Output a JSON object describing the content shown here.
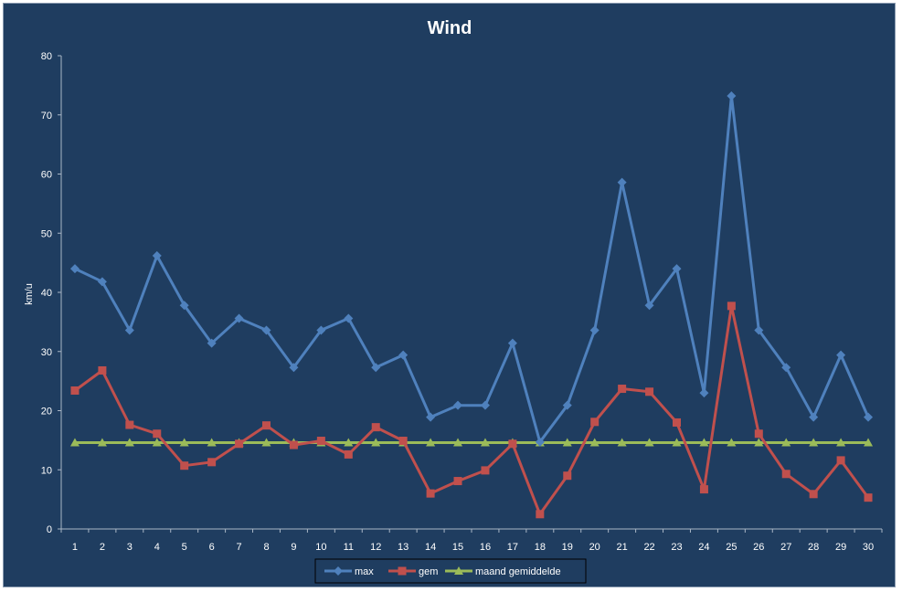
{
  "chart_data": {
    "type": "line",
    "title": "Wind",
    "xlabel": "",
    "ylabel": "km/u",
    "ylim": [
      0,
      80
    ],
    "yticks": [
      "0",
      "10",
      "20",
      "30",
      "40",
      "50",
      "60",
      "70",
      "80"
    ],
    "categories": [
      "1",
      "2",
      "3",
      "4",
      "5",
      "6",
      "7",
      "8",
      "9",
      "10",
      "11",
      "12",
      "13",
      "14",
      "15",
      "16",
      "17",
      "18",
      "19",
      "20",
      "21",
      "22",
      "23",
      "24",
      "25",
      "26",
      "27",
      "28",
      "29",
      "30"
    ],
    "legend_position": "bottom",
    "grid": false,
    "series": [
      {
        "name": "max",
        "color": "#4f81bd",
        "marker": "diamond",
        "values": [
          44,
          41.8,
          33.6,
          46.2,
          37.8,
          31.4,
          35.6,
          33.6,
          27.3,
          33.6,
          35.6,
          27.3,
          29.4,
          18.9,
          20.9,
          20.9,
          31.4,
          14.7,
          20.9,
          33.6,
          58.6,
          37.8,
          44,
          23,
          73.2,
          33.6,
          27.3,
          18.9,
          29.4,
          18.9
        ]
      },
      {
        "name": "gem",
        "color": "#c0504d",
        "marker": "square",
        "values": [
          23.4,
          26.8,
          17.6,
          16.1,
          10.7,
          11.3,
          14.4,
          17.5,
          14.2,
          14.9,
          12.6,
          17.2,
          14.9,
          6,
          8.1,
          9.9,
          14.4,
          2.5,
          9,
          18.1,
          23.7,
          23.2,
          18,
          6.7,
          37.7,
          16.1,
          9.3,
          5.9,
          11.6,
          5.3
        ]
      },
      {
        "name": "maand gemiddelde",
        "color": "#9bbb59",
        "marker": "triangle",
        "values": [
          14.6,
          14.6,
          14.6,
          14.6,
          14.6,
          14.6,
          14.6,
          14.6,
          14.6,
          14.6,
          14.6,
          14.6,
          14.6,
          14.6,
          14.6,
          14.6,
          14.6,
          14.6,
          14.6,
          14.6,
          14.6,
          14.6,
          14.6,
          14.6,
          14.6,
          14.6,
          14.6,
          14.6,
          14.6,
          14.6
        ]
      }
    ]
  }
}
